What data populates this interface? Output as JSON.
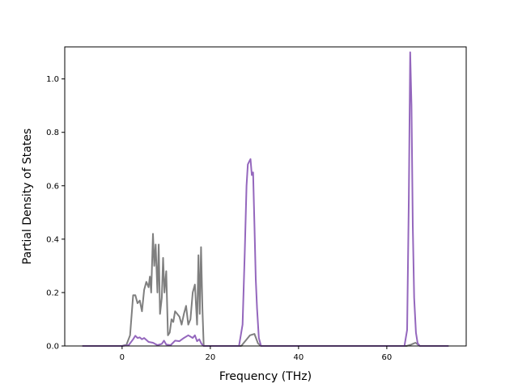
{
  "chart_data": {
    "type": "line",
    "title": "",
    "xlabel": "Frequency (THz)",
    "ylabel": "Partial Density of States",
    "xlim": [
      -13,
      78
    ],
    "ylim": [
      0,
      1.12
    ],
    "xticks": [
      0,
      20,
      40,
      60
    ],
    "yticks": [
      0.0,
      0.2,
      0.4,
      0.6,
      0.8,
      1.0
    ],
    "grid": false,
    "legend": "none",
    "series": [
      {
        "color": "#7f7f7f",
        "x": [
          -9,
          0,
          1.0,
          1.8,
          2.5,
          3.0,
          3.5,
          4.0,
          4.5,
          5.0,
          5.5,
          6.0,
          6.3,
          6.6,
          7.0,
          7.3,
          7.6,
          8.0,
          8.3,
          8.6,
          9.0,
          9.3,
          9.6,
          10.0,
          10.4,
          10.8,
          11.2,
          11.6,
          12.0,
          12.5,
          13.0,
          13.5,
          14.0,
          14.5,
          15.0,
          15.5,
          16.0,
          16.5,
          17.0,
          17.3,
          17.6,
          17.9,
          18.2,
          18.5,
          19.0,
          27.0,
          28.0,
          29.0,
          30.0,
          30.8,
          31.5,
          64.5,
          65.5,
          66.5,
          67.5,
          74
        ],
        "y": [
          0,
          0,
          0.005,
          0.04,
          0.19,
          0.19,
          0.16,
          0.17,
          0.13,
          0.21,
          0.24,
          0.22,
          0.26,
          0.2,
          0.42,
          0.3,
          0.38,
          0.2,
          0.38,
          0.12,
          0.18,
          0.33,
          0.2,
          0.28,
          0.04,
          0.05,
          0.1,
          0.09,
          0.13,
          0.12,
          0.11,
          0.08,
          0.12,
          0.15,
          0.08,
          0.1,
          0.2,
          0.23,
          0.08,
          0.34,
          0.12,
          0.37,
          0.14,
          0,
          0,
          0,
          0.02,
          0.04,
          0.045,
          0.01,
          0,
          0,
          0.005,
          0.012,
          0,
          0
        ]
      },
      {
        "color": "#9467bd",
        "x": [
          -9,
          0,
          1.5,
          2.5,
          3.0,
          3.5,
          4.0,
          4.5,
          5.0,
          6.0,
          7.0,
          8.0,
          9.0,
          9.5,
          10.0,
          11.0,
          12.0,
          13.0,
          14.0,
          15.0,
          15.5,
          16.0,
          16.5,
          17.0,
          17.5,
          18.0,
          18.5,
          26.5,
          27.3,
          27.8,
          28.2,
          28.5,
          28.8,
          29.1,
          29.4,
          29.7,
          30.0,
          30.3,
          30.6,
          31.0,
          31.5,
          32.0,
          64.0,
          64.6,
          65.0,
          65.3,
          65.6,
          65.9,
          66.2,
          66.6,
          67.0,
          67.5,
          74
        ],
        "y": [
          0,
          0,
          0.003,
          0.025,
          0.038,
          0.03,
          0.032,
          0.025,
          0.03,
          0.015,
          0.012,
          0.003,
          0.008,
          0.02,
          0.005,
          0.003,
          0.02,
          0.018,
          0.03,
          0.04,
          0.035,
          0.03,
          0.04,
          0.018,
          0.025,
          0.008,
          0,
          0,
          0.08,
          0.35,
          0.6,
          0.68,
          0.69,
          0.7,
          0.64,
          0.65,
          0.45,
          0.25,
          0.14,
          0.03,
          0,
          0,
          0,
          0.06,
          0.55,
          1.1,
          0.9,
          0.45,
          0.18,
          0.05,
          0.01,
          0,
          0
        ]
      }
    ]
  }
}
